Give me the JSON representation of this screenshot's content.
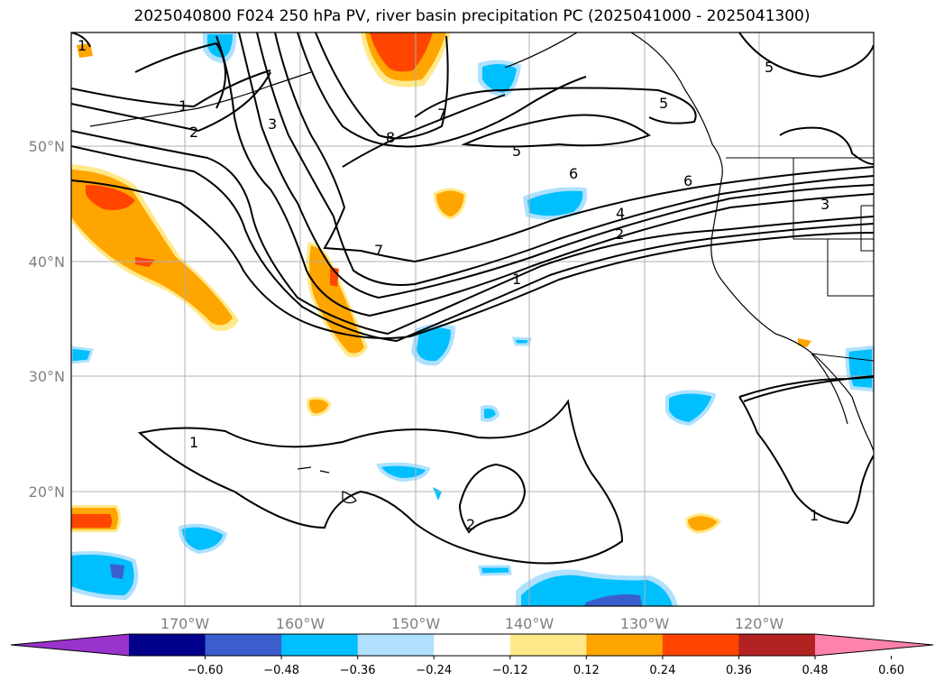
{
  "title": "2025040800 F024 250 hPa PV, river basin precipitation PC (2025041000 - 2025041300)",
  "map": {
    "lat_labels": [
      "50°N",
      "40°N",
      "30°N",
      "20°N"
    ],
    "lon_labels": [
      "170°W",
      "160°W",
      "150°W",
      "140°W",
      "130°W",
      "120°W"
    ],
    "contour_labels": [
      "1",
      "2",
      "3",
      "4",
      "5",
      "6",
      "7",
      "8",
      "1",
      "2",
      "3",
      "6",
      "5",
      "7",
      "1",
      "2",
      "1",
      "1",
      "5"
    ]
  },
  "colorbar": {
    "ticks": [
      "−0.60",
      "−0.48",
      "−0.36",
      "−0.24",
      "−0.12",
      "0.12",
      "0.24",
      "0.36",
      "0.48",
      "0.60"
    ],
    "colors": [
      "#9933cc",
      "#00008b",
      "#3a5fcd",
      "#00bfff",
      "#afe1ff",
      "#ffffff",
      "#ffe98a",
      "#ffa500",
      "#ff4500",
      "#b22222",
      "#ff82ab"
    ]
  },
  "colors": {
    "pos1": "#ffe98a",
    "pos2": "#ffa500",
    "pos3": "#ff4500",
    "neg1": "#afe1ff",
    "neg2": "#00bfff",
    "neg3": "#3a5fcd"
  }
}
